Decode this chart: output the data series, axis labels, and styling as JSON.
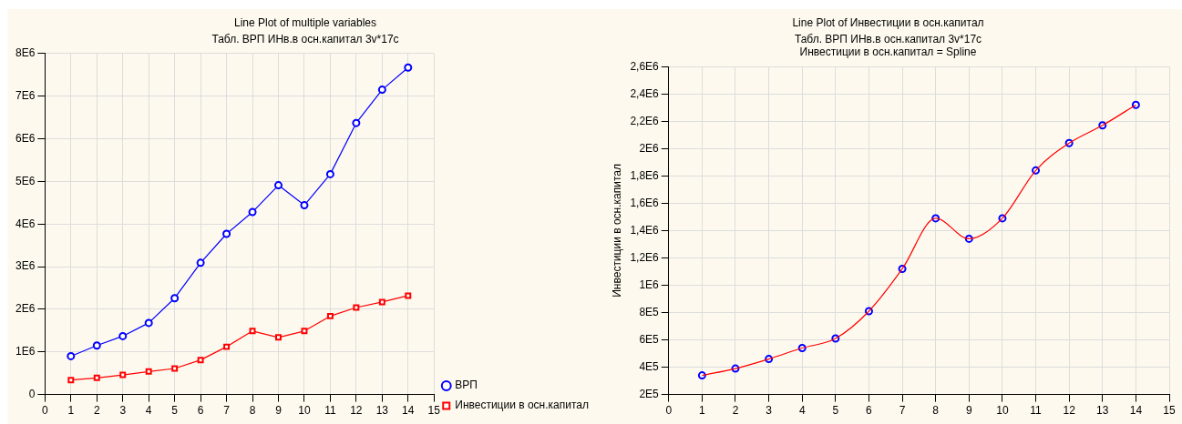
{
  "chart_data": [
    {
      "type": "line",
      "title": "Line Plot of multiple variables",
      "subtitle": "Табл. ВРП ИНв.в осн.капитал 3v*17c",
      "x": [
        1,
        2,
        3,
        4,
        5,
        6,
        7,
        8,
        9,
        10,
        11,
        12,
        13,
        14
      ],
      "series": [
        {
          "name": "ВРП",
          "color": "#0000ff",
          "marker": "circle",
          "values": [
            900000,
            1150000,
            1370000,
            1680000,
            2260000,
            3090000,
            3770000,
            4280000,
            4910000,
            4440000,
            5170000,
            6370000,
            7150000,
            7670000
          ]
        },
        {
          "name": "Инвестиции в осн.капитал",
          "color": "#ff0000",
          "marker": "square",
          "values": [
            340000,
            390000,
            460000,
            540000,
            610000,
            810000,
            1120000,
            1490000,
            1340000,
            1490000,
            1840000,
            2040000,
            2170000,
            2320000
          ]
        }
      ],
      "xlim": [
        0,
        15
      ],
      "xticks": [
        0,
        1,
        2,
        3,
        4,
        5,
        6,
        7,
        8,
        9,
        10,
        11,
        12,
        13,
        14,
        15
      ],
      "ylim": [
        0,
        8000000
      ],
      "yticks": [
        0,
        {
          "value": 1000000,
          "label": "1E6"
        },
        {
          "value": 2000000,
          "label": "2E6"
        },
        {
          "value": 3000000,
          "label": "3E6"
        },
        {
          "value": 4000000,
          "label": "4E6"
        },
        {
          "value": 5000000,
          "label": "5E6"
        },
        {
          "value": 6000000,
          "label": "6E6"
        },
        {
          "value": 7000000,
          "label": "7E6"
        },
        {
          "value": 8000000,
          "label": "8E6"
        }
      ],
      "grid": true,
      "legend": "bottom right"
    },
    {
      "type": "line",
      "title": "Line Plot of Инвестиции в осн.капитал",
      "subtitle": "Табл. ВРП ИНв.в осн.капитал 3v*17c",
      "ylabel": "Инвестиции в осн.капитал",
      "annotations": [
        "Инвестиции в осн.капитал = Spline"
      ],
      "x": [
        1,
        2,
        3,
        4,
        5,
        6,
        7,
        8,
        9,
        10,
        11,
        12,
        13,
        14
      ],
      "series": [
        {
          "color": "#ff0000",
          "marker": "none",
          "values": [
            340000,
            390000,
            460000,
            540000,
            610000,
            810000,
            1120000,
            1490000,
            1340000,
            1490000,
            1840000,
            2040000,
            2170000,
            2320000
          ]
        },
        {
          "type": "scatter",
          "color": "#0000ff",
          "marker": "circle",
          "values": [
            340000,
            390000,
            460000,
            540000,
            610000,
            810000,
            1120000,
            1490000,
            1340000,
            1490000,
            1840000,
            2040000,
            2170000,
            2320000
          ]
        }
      ],
      "xlim": [
        0,
        15
      ],
      "xticks": [
        0,
        1,
        2,
        3,
        4,
        5,
        6,
        7,
        8,
        9,
        10,
        11,
        12,
        13,
        14,
        15
      ],
      "ylim": [
        200000,
        2600000
      ],
      "yticks": [
        {
          "value": 200000,
          "label": "2E5"
        },
        {
          "value": 400000,
          "label": "4E5"
        },
        {
          "value": 600000,
          "label": "6E5"
        },
        {
          "value": 800000,
          "label": "8E5"
        },
        {
          "value": 1000000,
          "label": "1E6"
        },
        {
          "value": 1200000,
          "label": "1,2E6"
        },
        {
          "value": 1400000,
          "label": "1,4E6"
        },
        {
          "value": 1600000,
          "label": "1,6E6"
        },
        {
          "value": 1800000,
          "label": "1,8E6"
        },
        {
          "value": 2000000,
          "label": "2E6"
        },
        {
          "value": 2200000,
          "label": "2,2E6"
        },
        {
          "value": 2400000,
          "label": "2,4E6"
        },
        {
          "value": 2600000,
          "label": "2,6E6"
        }
      ],
      "grid": true
    }
  ]
}
